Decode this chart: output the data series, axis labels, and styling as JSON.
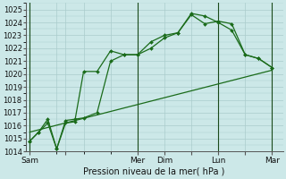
{
  "background_color": "#cce8e8",
  "grid_color": "#aacccc",
  "line_color": "#1a6b1a",
  "dark_line_color": "#1a4a1a",
  "xlabel_text": "Pression niveau de la mer( hPa )",
  "ylim": [
    1014,
    1025.5
  ],
  "yticks": [
    1014,
    1015,
    1016,
    1017,
    1018,
    1019,
    1020,
    1021,
    1022,
    1023,
    1024,
    1025
  ],
  "xtick_labels": [
    "Sam",
    "",
    "Mer",
    "Dim",
    "",
    "Lun",
    "",
    "Mar"
  ],
  "xtick_positions": [
    0,
    1.333,
    4,
    5,
    6,
    7,
    8,
    9
  ],
  "vlines_x": [
    0,
    4,
    7,
    9
  ],
  "series1": {
    "x": [
      0,
      0.33,
      0.67,
      1.0,
      1.33,
      1.67,
      2.0,
      2.5,
      3.0,
      3.5,
      4.0,
      4.5,
      5.0,
      5.5,
      6.0,
      6.5,
      7.0,
      7.5,
      8.0,
      8.5,
      9.0
    ],
    "y": [
      1014.8,
      1015.5,
      1016.5,
      1014.2,
      1016.2,
      1016.3,
      1020.2,
      1020.2,
      1021.8,
      1021.5,
      1021.5,
      1022.0,
      1022.8,
      1023.2,
      1024.6,
      1023.9,
      1024.1,
      1023.9,
      1021.5,
      1021.2,
      1020.5
    ]
  },
  "series2": {
    "x": [
      0,
      0.33,
      0.67,
      1.0,
      1.33,
      1.67,
      2.0,
      2.5,
      3.0,
      3.5,
      4.0,
      4.5,
      5.0,
      5.5,
      6.0,
      6.5,
      7.0,
      7.5,
      8.0,
      8.5,
      9.0
    ],
    "y": [
      1014.8,
      1015.5,
      1016.2,
      1014.2,
      1016.4,
      1016.5,
      1016.6,
      1017.0,
      1021.0,
      1021.5,
      1021.5,
      1022.5,
      1023.0,
      1023.2,
      1024.7,
      1024.5,
      1024.0,
      1023.4,
      1021.5,
      1021.2,
      1020.5
    ]
  },
  "series3": {
    "x": [
      0,
      9.0
    ],
    "y": [
      1015.5,
      1020.3
    ]
  },
  "figsize": [
    3.2,
    2.0
  ],
  "dpi": 100
}
